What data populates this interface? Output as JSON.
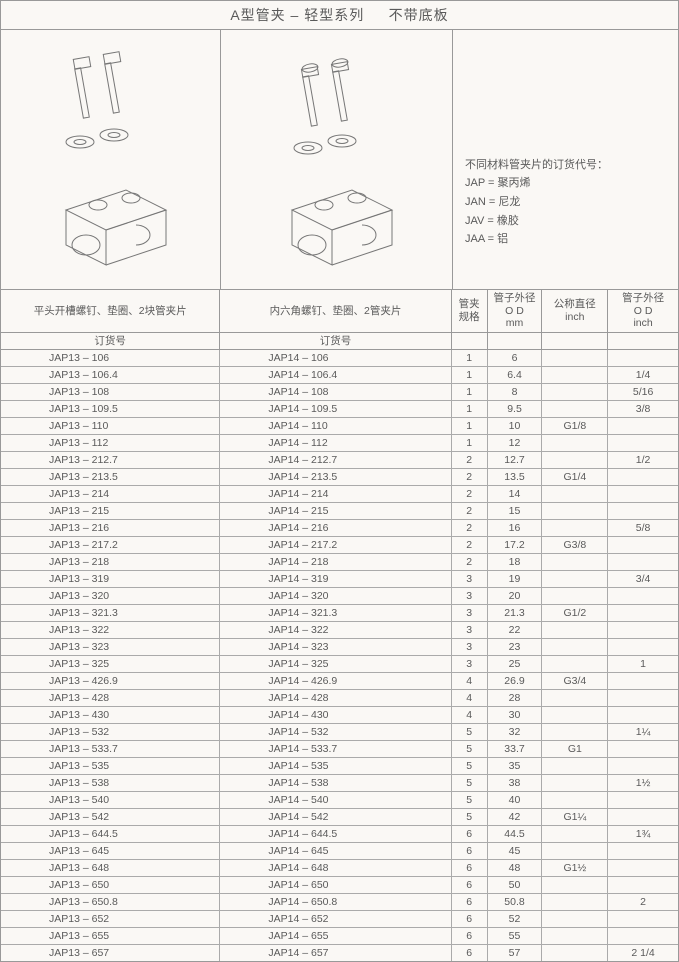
{
  "title": {
    "main": "A型管夹 – 轻型系列",
    "sub": "不带底板"
  },
  "legend": {
    "heading": "不同材料管夹片的订货代号：",
    "lines": [
      "JAP = 聚丙烯",
      "JAN = 尼龙",
      "JAV = 橡胶",
      "JAA = 铝"
    ]
  },
  "headers": {
    "a_top": "平头开槽螺钉、垫圈、2块管夹片",
    "b_top": "内六角螺钉、垫圈、2管夹片",
    "a_sub": "订货号",
    "b_sub": "订货号",
    "c": "管夹规格",
    "d": [
      "管子外径",
      "O D",
      "mm"
    ],
    "e": [
      "公称直径",
      "inch"
    ],
    "f": [
      "管子外径",
      "O D",
      "inch"
    ]
  },
  "rows": [
    {
      "a": "JAP13 – 106",
      "b": "JAP14 – 106",
      "c": "1",
      "d": "6",
      "e": "",
      "f": ""
    },
    {
      "a": "JAP13 – 106.4",
      "b": "JAP14 – 106.4",
      "c": "1",
      "d": "6.4",
      "e": "",
      "f": "1/4"
    },
    {
      "a": "JAP13 – 108",
      "b": "JAP14 – 108",
      "c": "1",
      "d": "8",
      "e": "",
      "f": "5/16"
    },
    {
      "a": "JAP13 – 109.5",
      "b": "JAP14 – 109.5",
      "c": "1",
      "d": "9.5",
      "e": "",
      "f": "3/8"
    },
    {
      "a": "JAP13 – 110",
      "b": "JAP14 – 110",
      "c": "1",
      "d": "10",
      "e": "G1/8",
      "f": ""
    },
    {
      "a": "JAP13 – 112",
      "b": "JAP14 – 112",
      "c": "1",
      "d": "12",
      "e": "",
      "f": ""
    },
    {
      "a": "JAP13 – 212.7",
      "b": "JAP14 – 212.7",
      "c": "2",
      "d": "12.7",
      "e": "",
      "f": "1/2"
    },
    {
      "a": "JAP13 – 213.5",
      "b": "JAP14 – 213.5",
      "c": "2",
      "d": "13.5",
      "e": "G1/4",
      "f": ""
    },
    {
      "a": "JAP13 – 214",
      "b": "JAP14 – 214",
      "c": "2",
      "d": "14",
      "e": "",
      "f": ""
    },
    {
      "a": "JAP13 – 215",
      "b": "JAP14 – 215",
      "c": "2",
      "d": "15",
      "e": "",
      "f": ""
    },
    {
      "a": "JAP13 – 216",
      "b": "JAP14 – 216",
      "c": "2",
      "d": "16",
      "e": "",
      "f": "5/8"
    },
    {
      "a": "JAP13 – 217.2",
      "b": "JAP14 – 217.2",
      "c": "2",
      "d": "17.2",
      "e": "G3/8",
      "f": ""
    },
    {
      "a": "JAP13 – 218",
      "b": "JAP14 – 218",
      "c": "2",
      "d": "18",
      "e": "",
      "f": ""
    },
    {
      "a": "JAP13 – 319",
      "b": "JAP14 – 319",
      "c": "3",
      "d": "19",
      "e": "",
      "f": "3/4"
    },
    {
      "a": "JAP13 – 320",
      "b": "JAP14 – 320",
      "c": "3",
      "d": "20",
      "e": "",
      "f": ""
    },
    {
      "a": "JAP13 – 321.3",
      "b": "JAP14 – 321.3",
      "c": "3",
      "d": "21.3",
      "e": "G1/2",
      "f": ""
    },
    {
      "a": "JAP13 – 322",
      "b": "JAP14 – 322",
      "c": "3",
      "d": "22",
      "e": "",
      "f": ""
    },
    {
      "a": "JAP13 – 323",
      "b": "JAP14 – 323",
      "c": "3",
      "d": "23",
      "e": "",
      "f": ""
    },
    {
      "a": "JAP13 – 325",
      "b": "JAP14 – 325",
      "c": "3",
      "d": "25",
      "e": "",
      "f": "1"
    },
    {
      "a": "JAP13 – 426.9",
      "b": "JAP14 – 426.9",
      "c": "4",
      "d": "26.9",
      "e": "G3/4",
      "f": ""
    },
    {
      "a": "JAP13 – 428",
      "b": "JAP14 – 428",
      "c": "4",
      "d": "28",
      "e": "",
      "f": ""
    },
    {
      "a": "JAP13 – 430",
      "b": "JAP14 – 430",
      "c": "4",
      "d": "30",
      "e": "",
      "f": ""
    },
    {
      "a": "JAP13 – 532",
      "b": "JAP14 – 532",
      "c": "5",
      "d": "32",
      "e": "",
      "f": "1¼"
    },
    {
      "a": "JAP13 – 533.7",
      "b": "JAP14 – 533.7",
      "c": "5",
      "d": "33.7",
      "e": "G1",
      "f": ""
    },
    {
      "a": "JAP13 – 535",
      "b": "JAP14 – 535",
      "c": "5",
      "d": "35",
      "e": "",
      "f": ""
    },
    {
      "a": "JAP13 – 538",
      "b": "JAP14 – 538",
      "c": "5",
      "d": "38",
      "e": "",
      "f": "1½"
    },
    {
      "a": "JAP13 – 540",
      "b": "JAP14 – 540",
      "c": "5",
      "d": "40",
      "e": "",
      "f": ""
    },
    {
      "a": "JAP13 – 542",
      "b": "JAP14 – 542",
      "c": "5",
      "d": "42",
      "e": "G1¼",
      "f": ""
    },
    {
      "a": "JAP13 – 644.5",
      "b": "JAP14 – 644.5",
      "c": "6",
      "d": "44.5",
      "e": "",
      "f": "1¾"
    },
    {
      "a": "JAP13 – 645",
      "b": "JAP14 – 645",
      "c": "6",
      "d": "45",
      "e": "",
      "f": ""
    },
    {
      "a": "JAP13 – 648",
      "b": "JAP14 – 648",
      "c": "6",
      "d": "48",
      "e": "G1½",
      "f": ""
    },
    {
      "a": "JAP13 – 650",
      "b": "JAP14 – 650",
      "c": "6",
      "d": "50",
      "e": "",
      "f": ""
    },
    {
      "a": "JAP13 – 650.8",
      "b": "JAP14 – 650.8",
      "c": "6",
      "d": "50.8",
      "e": "",
      "f": "2"
    },
    {
      "a": "JAP13 – 652",
      "b": "JAP14 – 652",
      "c": "6",
      "d": "52",
      "e": "",
      "f": ""
    },
    {
      "a": "JAP13 – 655",
      "b": "JAP14 – 655",
      "c": "6",
      "d": "55",
      "e": "",
      "f": ""
    },
    {
      "a": "JAP13 – 657",
      "b": "JAP14 – 657",
      "c": "6",
      "d": "57",
      "e": "",
      "f": "2 1/4"
    }
  ],
  "style": {
    "border_color": "#999999",
    "text_color": "#5a5a5a",
    "background": "#faf8f5",
    "title_fontsize": 14,
    "cell_fontsize": 10.5,
    "font_family": "SimSun"
  }
}
